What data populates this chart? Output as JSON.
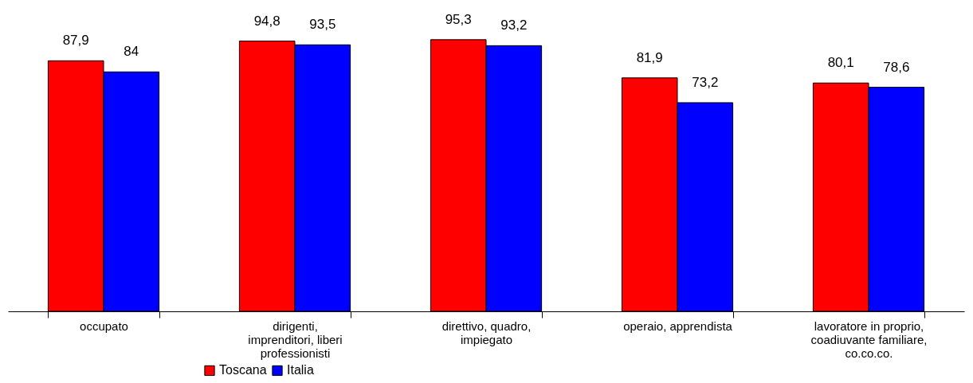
{
  "chart_data": {
    "type": "bar",
    "categories": [
      "occupato",
      "dirigenti, imprenditori, liberi professionisti",
      "direttivo, quadro, impiegato",
      "operaio, apprendista",
      "lavoratore in proprio, coadiuvante familiare, co.co.co."
    ],
    "series": [
      {
        "name": "Toscana",
        "color": "#ff0000",
        "values": [
          87.9,
          94.8,
          95.3,
          81.9,
          80.1
        ],
        "value_labels": [
          "87,9",
          "94,8",
          "95,3",
          "81,9",
          "80,1"
        ]
      },
      {
        "name": "Italia",
        "color": "#0000ff",
        "values": [
          84,
          93.5,
          93.2,
          73.2,
          78.6
        ],
        "value_labels": [
          "84",
          "93,5",
          "93,2",
          "73,2",
          "78,6"
        ]
      }
    ],
    "grid": false,
    "legend": "bottom"
  }
}
